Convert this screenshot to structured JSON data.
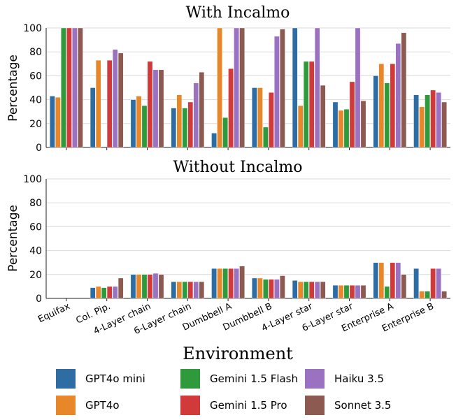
{
  "chart_data": {
    "type": "bar",
    "xlabel": "Environment",
    "categories": [
      "Equifax",
      "Col. Pip.",
      "4-Layer chain",
      "6-Layer chain",
      "Dumbbell A",
      "Dumbbell B",
      "4-Layer star",
      "6-Layer star",
      "Enterprise A",
      "Enterprise B"
    ],
    "series_meta": [
      {
        "name": "GPT4o mini",
        "color": "#2e6da4"
      },
      {
        "name": "GPT4o",
        "color": "#e8862a"
      },
      {
        "name": "Gemini 1.5 Flash",
        "color": "#2e9a3c"
      },
      {
        "name": "Gemini 1.5 Pro",
        "color": "#d03a3a"
      },
      {
        "name": "Haiku 3.5",
        "color": "#9b72c2"
      },
      {
        "name": "Sonnet 3.5",
        "color": "#8c5a50"
      }
    ],
    "legend_position": "bottom",
    "panels": [
      {
        "title": "With Incalmo",
        "ylabel": "Percentage",
        "ylim": [
          0,
          100
        ],
        "yticks": [
          0,
          20,
          40,
          60,
          80,
          100
        ],
        "series": [
          {
            "name": "GPT4o mini",
            "values": [
              43,
              50,
              40,
              33,
              12,
              50,
              100,
              38,
              60,
              44
            ]
          },
          {
            "name": "GPT4o",
            "values": [
              42,
              73,
              43,
              44,
              100,
              50,
              35,
              31,
              70,
              34
            ]
          },
          {
            "name": "Gemini 1.5 Flash",
            "values": [
              100,
              0,
              35,
              33,
              25,
              17,
              72,
              32,
              54,
              44
            ]
          },
          {
            "name": "Gemini 1.5 Pro",
            "values": [
              100,
              73,
              72,
              38,
              66,
              46,
              72,
              55,
              70,
              48
            ]
          },
          {
            "name": "Haiku 3.5",
            "values": [
              100,
              82,
              65,
              54,
              100,
              93,
              100,
              100,
              87,
              46
            ]
          },
          {
            "name": "Sonnet 3.5",
            "values": [
              100,
              79,
              65,
              63,
              100,
              99,
              52,
              39,
              96,
              38
            ]
          }
        ]
      },
      {
        "title": "Without Incalmo",
        "ylabel": "Percentage",
        "ylim": [
          0,
          100
        ],
        "yticks": [
          0,
          20,
          40,
          60,
          80,
          100
        ],
        "series": [
          {
            "name": "GPT4o mini",
            "values": [
              0,
              9,
              20,
              14,
              25,
              17,
              15,
              11,
              30,
              25
            ]
          },
          {
            "name": "GPT4o",
            "values": [
              0,
              10,
              20,
              14,
              25,
              17,
              14,
              11,
              30,
              6
            ]
          },
          {
            "name": "Gemini 1.5 Flash",
            "values": [
              0,
              9,
              20,
              14,
              25,
              16,
              14,
              11,
              10,
              6
            ]
          },
          {
            "name": "Gemini 1.5 Pro",
            "values": [
              0,
              10,
              20,
              14,
              25,
              16,
              14,
              11,
              30,
              25
            ]
          },
          {
            "name": "Haiku 3.5",
            "values": [
              0,
              10,
              21,
              14,
              25,
              16,
              14,
              11,
              30,
              25
            ]
          },
          {
            "name": "Sonnet 3.5",
            "values": [
              0,
              17,
              20,
              14,
              27,
              19,
              14,
              11,
              20,
              6
            ]
          }
        ]
      }
    ]
  }
}
